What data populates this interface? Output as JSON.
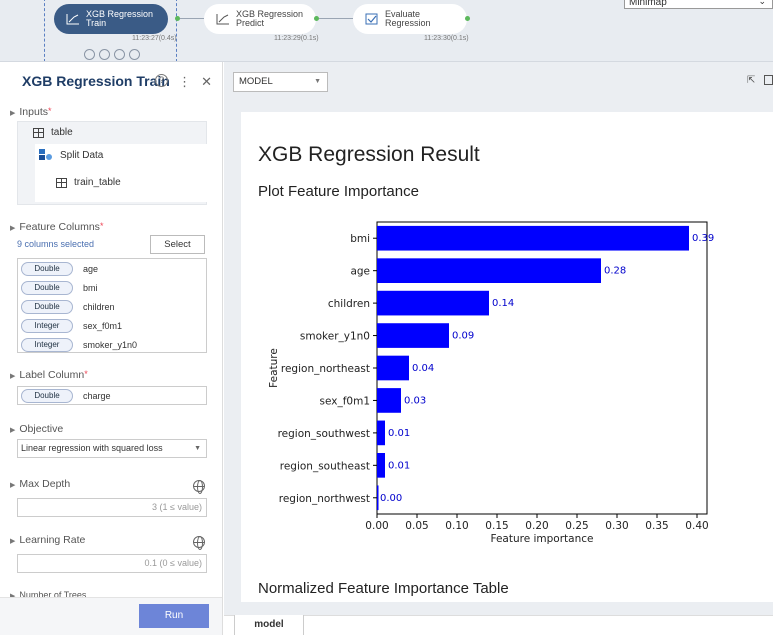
{
  "workflow": {
    "nodes": [
      {
        "label": "XGB Regression Train",
        "time": "11:23:27(0.4s)",
        "active": true
      },
      {
        "label": "XGB Regression Predict",
        "time": "11:23:29(0.1s)",
        "active": false
      },
      {
        "label": "Evaluate Regression",
        "time": "11:23:30(0.1s)",
        "active": false
      }
    ],
    "minimap_label": "Minimap"
  },
  "panel": {
    "title": "XGB Regression Train",
    "help_icon": "help-circle-icon",
    "more_icon": "more-vert-icon",
    "close_icon": "close-icon",
    "inputs": {
      "label": "Inputs",
      "required_mark": "*",
      "table": "table",
      "source": "Split Data",
      "source_table": "train_table"
    },
    "feature_columns": {
      "label": "Feature Columns",
      "required_mark": "*",
      "selected_text": "9 columns selected",
      "select_button": "Select",
      "items": [
        {
          "type": "Double",
          "name": "age"
        },
        {
          "type": "Double",
          "name": "bmi"
        },
        {
          "type": "Double",
          "name": "children"
        },
        {
          "type": "Integer",
          "name": "sex_f0m1"
        },
        {
          "type": "Integer",
          "name": "smoker_y1n0"
        }
      ]
    },
    "label_column": {
      "label": "Label Column",
      "required_mark": "*",
      "type": "Double",
      "name": "charge"
    },
    "objective": {
      "label": "Objective",
      "value": "Linear regression with squared loss"
    },
    "max_depth": {
      "label": "Max Depth",
      "value": "3 (1 ≤ value)"
    },
    "learning_rate": {
      "label": "Learning Rate",
      "value": "0.1 (0 ≤ value)"
    },
    "number_of_trees": {
      "label": "Number of Trees"
    },
    "run_button": "Run"
  },
  "result": {
    "model_select": "MODEL",
    "title": "XGB Regression Result",
    "subtitle": "Plot Feature Importance",
    "next_heading": "Normalized Feature Importance Table",
    "bottom_tab": "model"
  },
  "chart_data": {
    "type": "bar",
    "orientation": "horizontal",
    "categories": [
      "bmi",
      "age",
      "children",
      "smoker_y1n0",
      "region_northeast",
      "sex_f0m1",
      "region_southwest",
      "region_southeast",
      "region_northwest"
    ],
    "values": [
      0.39,
      0.28,
      0.14,
      0.09,
      0.04,
      0.03,
      0.01,
      0.01,
      0.0
    ],
    "value_labels": [
      "0.39",
      "0.28",
      "0.14",
      "0.09",
      "0.04",
      "0.03",
      "0.01",
      "0.01",
      "0.00"
    ],
    "xlabel": "Feature importance",
    "ylabel": "Feature",
    "xlim": [
      0,
      0.4125
    ],
    "xticks": [
      "0.00",
      "0.05",
      "0.10",
      "0.15",
      "0.20",
      "0.25",
      "0.30",
      "0.35",
      "0.40"
    ],
    "bar_color": "#0000ff",
    "label_color": "#0000cc",
    "grid": false
  }
}
